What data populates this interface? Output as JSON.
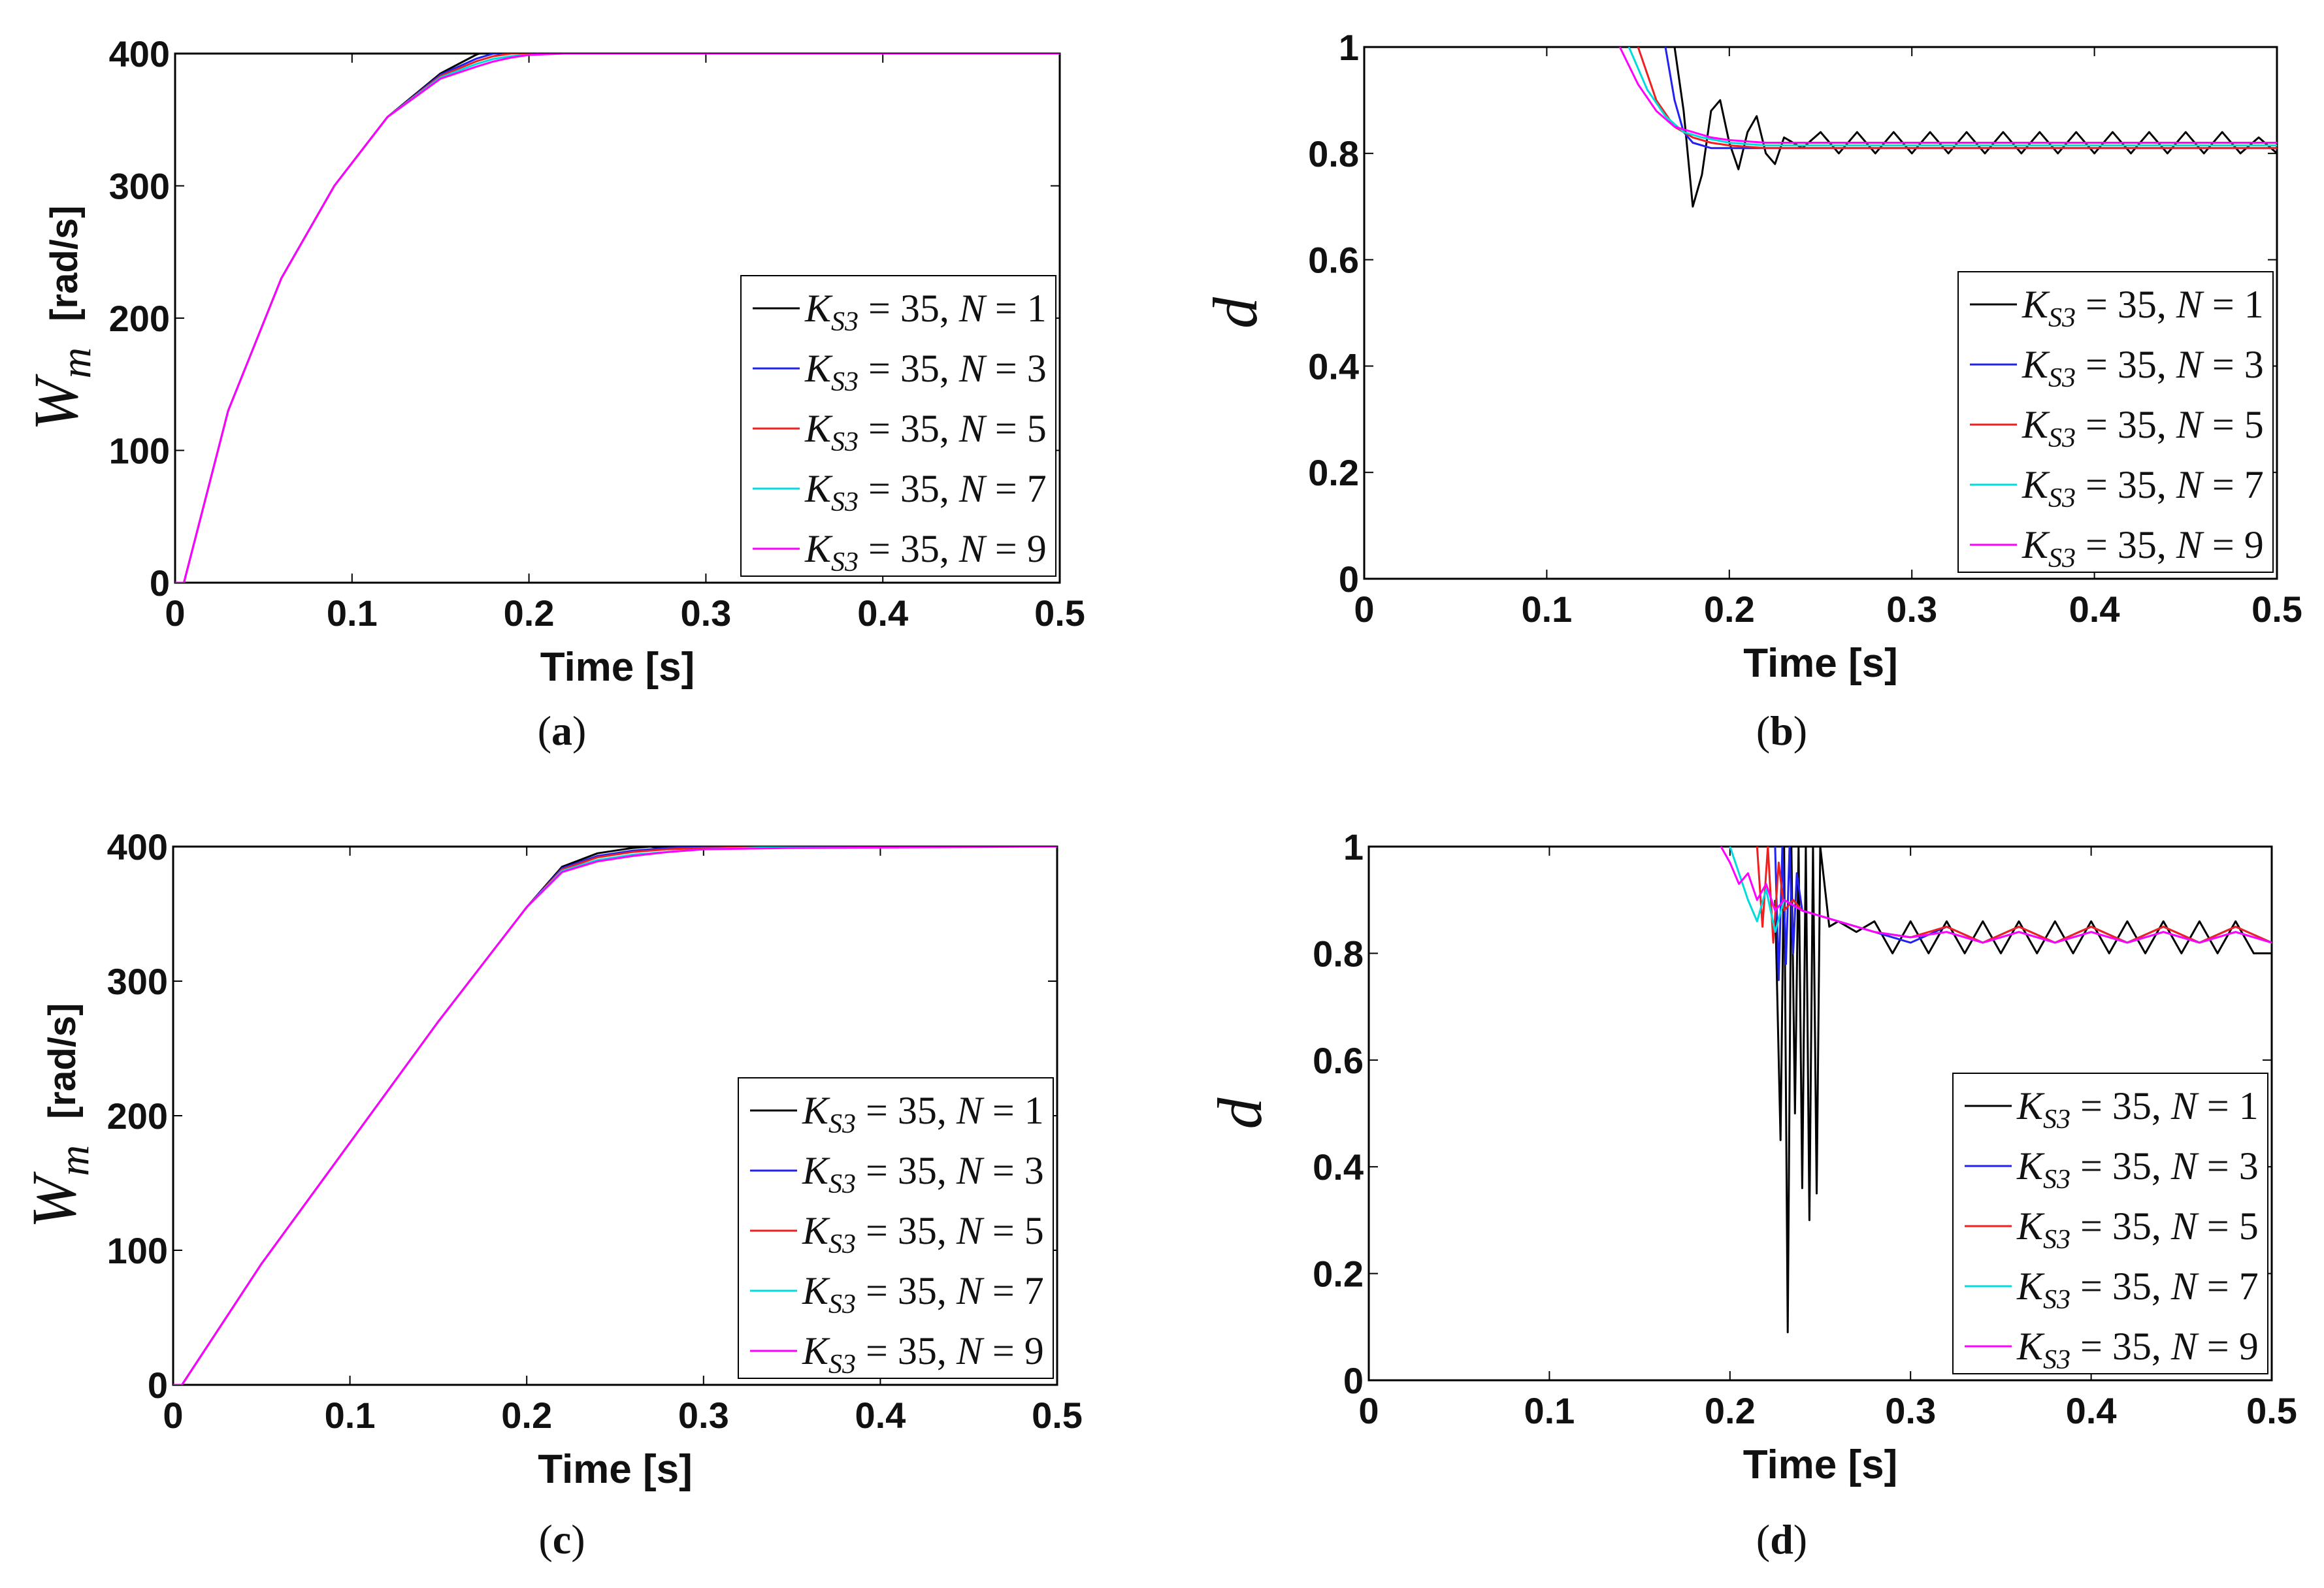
{
  "figure": {
    "captions": [
      "(a)",
      "(b)",
      "(c)",
      "(d)"
    ]
  },
  "series_colors": {
    "N = 1": "#000000",
    "N = 3": "#2222ee",
    "N = 5": "#ee2020",
    "N = 7": "#00dcdc",
    "N = 9": "#ff00ff"
  },
  "chart_data": [
    {
      "panel": "a",
      "type": "line",
      "xlabel": "Time [s]",
      "ylabel_symbol": "W",
      "ylabel_subscript": "m",
      "ylabel_units": "[rad/s]",
      "xlim": [
        0,
        0.5
      ],
      "ylim": [
        0,
        400
      ],
      "xticks": [
        "0",
        "0.1",
        "0.2",
        "0.3",
        "0.4",
        "0.5"
      ],
      "yticks": [
        "0",
        "100",
        "200",
        "300",
        "400"
      ],
      "legend": [
        "K_S3 = 35, N = 1",
        "K_S3 = 35, N = 3",
        "K_S3 = 35, N = 5",
        "K_S3 = 35, N = 7",
        "K_S3 = 35, N = 9"
      ],
      "legend_position": "lower-right",
      "series": [
        {
          "name": "N = 1",
          "color": "#000000",
          "x": [
            0,
            0.005,
            0.03,
            0.06,
            0.09,
            0.12,
            0.15,
            0.17,
            0.18,
            0.19,
            0.2,
            0.21,
            0.22,
            0.25,
            0.3,
            0.5
          ],
          "y": [
            0,
            0,
            130,
            230,
            300,
            352,
            385,
            399,
            404,
            401,
            399,
            400,
            400,
            400,
            400,
            400
          ]
        },
        {
          "name": "N = 3",
          "color": "#2222ee",
          "x": [
            0,
            0.005,
            0.03,
            0.06,
            0.09,
            0.12,
            0.15,
            0.17,
            0.18,
            0.19,
            0.2,
            0.22,
            0.25,
            0.3,
            0.5
          ],
          "y": [
            0,
            0,
            130,
            230,
            300,
            352,
            384,
            396,
            400,
            401,
            400,
            400,
            400,
            400,
            400
          ]
        },
        {
          "name": "N = 5",
          "color": "#ee2020",
          "x": [
            0,
            0.005,
            0.03,
            0.06,
            0.09,
            0.12,
            0.15,
            0.17,
            0.18,
            0.19,
            0.2,
            0.22,
            0.25,
            0.3,
            0.5
          ],
          "y": [
            0,
            0,
            130,
            230,
            300,
            352,
            383,
            394,
            398,
            400,
            400,
            400,
            400,
            400,
            400
          ]
        },
        {
          "name": "N = 7",
          "color": "#00dcdc",
          "x": [
            0,
            0.005,
            0.03,
            0.06,
            0.09,
            0.12,
            0.15,
            0.17,
            0.18,
            0.19,
            0.2,
            0.22,
            0.25,
            0.3,
            0.5
          ],
          "y": [
            0,
            0,
            130,
            230,
            300,
            352,
            382,
            392,
            396,
            398,
            399,
            400,
            400,
            400,
            400
          ]
        },
        {
          "name": "N = 9",
          "color": "#ff00ff",
          "x": [
            0,
            0.005,
            0.03,
            0.06,
            0.09,
            0.12,
            0.15,
            0.17,
            0.18,
            0.19,
            0.2,
            0.22,
            0.25,
            0.3,
            0.5
          ],
          "y": [
            0,
            0,
            130,
            230,
            300,
            352,
            381,
            390,
            394,
            397,
            399,
            400,
            400,
            400,
            400
          ]
        }
      ]
    },
    {
      "panel": "b",
      "type": "line",
      "xlabel": "Time [s]",
      "ylabel_symbol": "d",
      "xlim": [
        0,
        0.5
      ],
      "ylim": [
        0,
        1
      ],
      "xticks": [
        "0",
        "0.1",
        "0.2",
        "0.3",
        "0.4",
        "0.5"
      ],
      "yticks": [
        "0",
        "0.2",
        "0.4",
        "0.6",
        "0.8",
        "1"
      ],
      "legend": [
        "K_S3 = 35, N = 1",
        "K_S3 = 35, N = 3",
        "K_S3 = 35, N = 5",
        "K_S3 = 35, N = 7",
        "K_S3 = 35, N = 9"
      ],
      "legend_position": "lower-right",
      "series": [
        {
          "name": "N = 1",
          "color": "#000000",
          "x": [
            0.17,
            0.175,
            0.18,
            0.185,
            0.19,
            0.195,
            0.2,
            0.205,
            0.21,
            0.215,
            0.22,
            0.225,
            0.23,
            0.24,
            0.25,
            0.26,
            0.27,
            0.28,
            0.29,
            0.3,
            0.31,
            0.32,
            0.33,
            0.34,
            0.35,
            0.36,
            0.37,
            0.38,
            0.39,
            0.4,
            0.41,
            0.42,
            0.43,
            0.44,
            0.45,
            0.46,
            0.47,
            0.48,
            0.49,
            0.5
          ],
          "y": [
            1.0,
            0.88,
            0.7,
            0.76,
            0.88,
            0.9,
            0.82,
            0.77,
            0.84,
            0.87,
            0.8,
            0.78,
            0.83,
            0.81,
            0.84,
            0.8,
            0.84,
            0.8,
            0.84,
            0.8,
            0.84,
            0.8,
            0.84,
            0.8,
            0.84,
            0.8,
            0.84,
            0.8,
            0.84,
            0.8,
            0.84,
            0.8,
            0.84,
            0.8,
            0.84,
            0.8,
            0.84,
            0.8,
            0.83,
            0.8
          ]
        },
        {
          "name": "N = 3",
          "color": "#2222ee",
          "x": [
            0.165,
            0.17,
            0.175,
            0.18,
            0.19,
            0.2,
            0.22,
            0.25,
            0.3,
            0.35,
            0.4,
            0.45,
            0.5
          ],
          "y": [
            1.0,
            0.9,
            0.84,
            0.82,
            0.81,
            0.81,
            0.81,
            0.81,
            0.81,
            0.81,
            0.81,
            0.81,
            0.81
          ]
        },
        {
          "name": "N = 5",
          "color": "#ee2020",
          "x": [
            0.15,
            0.16,
            0.17,
            0.18,
            0.19,
            0.2,
            0.22,
            0.25,
            0.3,
            0.35,
            0.4,
            0.45,
            0.5
          ],
          "y": [
            1.0,
            0.9,
            0.85,
            0.83,
            0.82,
            0.815,
            0.81,
            0.81,
            0.81,
            0.81,
            0.81,
            0.81,
            0.81
          ]
        },
        {
          "name": "N = 7",
          "color": "#00dcdc",
          "x": [
            0.145,
            0.155,
            0.165,
            0.175,
            0.185,
            0.2,
            0.22,
            0.25,
            0.3,
            0.35,
            0.4,
            0.45,
            0.5
          ],
          "y": [
            1.0,
            0.92,
            0.87,
            0.84,
            0.83,
            0.82,
            0.815,
            0.815,
            0.815,
            0.815,
            0.815,
            0.815,
            0.815
          ]
        },
        {
          "name": "N = 9",
          "color": "#ff00ff",
          "x": [
            0.14,
            0.15,
            0.16,
            0.17,
            0.18,
            0.19,
            0.2,
            0.22,
            0.25,
            0.3,
            0.35,
            0.4,
            0.45,
            0.5
          ],
          "y": [
            1.0,
            0.93,
            0.88,
            0.85,
            0.84,
            0.83,
            0.825,
            0.82,
            0.82,
            0.82,
            0.82,
            0.82,
            0.82,
            0.82
          ]
        }
      ]
    },
    {
      "panel": "c",
      "type": "line",
      "xlabel": "Time [s]",
      "ylabel_symbol": "W",
      "ylabel_subscript": "m",
      "ylabel_units": "[rad/s]",
      "xlim": [
        0,
        0.5
      ],
      "ylim": [
        0,
        400
      ],
      "xticks": [
        "0",
        "0.1",
        "0.2",
        "0.3",
        "0.4",
        "0.5"
      ],
      "yticks": [
        "0",
        "100",
        "200",
        "300",
        "400"
      ],
      "legend": [
        "K_S3 = 35, N = 1",
        "K_S3 = 35, N = 3",
        "K_S3 = 35, N = 5",
        "K_S3 = 35, N = 7",
        "K_S3 = 35, N = 9"
      ],
      "legend_position": "lower-right",
      "series": [
        {
          "name": "N = 1",
          "color": "#000000",
          "x": [
            0,
            0.005,
            0.05,
            0.1,
            0.15,
            0.2,
            0.22,
            0.24,
            0.25,
            0.26,
            0.27,
            0.28,
            0.29,
            0.3,
            0.35,
            0.5
          ],
          "y": [
            0,
            0,
            90,
            180,
            270,
            355,
            385,
            395,
            397,
            399,
            400,
            398,
            400,
            400,
            400,
            400
          ]
        },
        {
          "name": "N = 3",
          "color": "#2222ee",
          "x": [
            0,
            0.005,
            0.05,
            0.1,
            0.15,
            0.2,
            0.22,
            0.24,
            0.26,
            0.28,
            0.3,
            0.35,
            0.5
          ],
          "y": [
            0,
            0,
            90,
            180,
            270,
            355,
            384,
            393,
            397,
            399,
            400,
            400,
            400
          ]
        },
        {
          "name": "N = 5",
          "color": "#ee2020",
          "x": [
            0,
            0.005,
            0.05,
            0.1,
            0.15,
            0.2,
            0.22,
            0.24,
            0.26,
            0.28,
            0.3,
            0.35,
            0.5
          ],
          "y": [
            0,
            0,
            90,
            180,
            270,
            355,
            383,
            392,
            396,
            398,
            399,
            400,
            400
          ]
        },
        {
          "name": "N = 7",
          "color": "#00dcdc",
          "x": [
            0,
            0.005,
            0.05,
            0.1,
            0.15,
            0.2,
            0.22,
            0.24,
            0.26,
            0.28,
            0.3,
            0.35,
            0.5
          ],
          "y": [
            0,
            0,
            90,
            180,
            270,
            355,
            382,
            390,
            394,
            396,
            398,
            400,
            400
          ]
        },
        {
          "name": "N = 9",
          "color": "#ff00ff",
          "x": [
            0,
            0.005,
            0.05,
            0.1,
            0.15,
            0.2,
            0.22,
            0.24,
            0.26,
            0.28,
            0.3,
            0.35,
            0.5
          ],
          "y": [
            0,
            0,
            90,
            180,
            270,
            355,
            381,
            389,
            393,
            396,
            398,
            399,
            400
          ]
        }
      ]
    },
    {
      "panel": "d",
      "type": "line",
      "xlabel": "Time [s]",
      "ylabel_symbol": "d",
      "xlim": [
        0,
        0.5
      ],
      "ylim": [
        0,
        1
      ],
      "xticks": [
        "0",
        "0.1",
        "0.2",
        "0.3",
        "0.4",
        "0.5"
      ],
      "yticks": [
        "0",
        "0.2",
        "0.4",
        "0.6",
        "0.8",
        "1"
      ],
      "legend": [
        "K_S3 = 35, N = 1",
        "K_S3 = 35, N = 3",
        "K_S3 = 35, N = 5",
        "K_S3 = 35, N = 7",
        "K_S3 = 35, N = 9"
      ],
      "legend_position": "lower-right",
      "series": [
        {
          "name": "N = 1",
          "color": "#000000",
          "x": [
            0.225,
            0.228,
            0.23,
            0.232,
            0.234,
            0.236,
            0.238,
            0.24,
            0.242,
            0.244,
            0.246,
            0.248,
            0.25,
            0.255,
            0.26,
            0.27,
            0.28,
            0.29,
            0.3,
            0.31,
            0.32,
            0.33,
            0.34,
            0.35,
            0.36,
            0.37,
            0.38,
            0.39,
            0.4,
            0.41,
            0.42,
            0.43,
            0.44,
            0.45,
            0.46,
            0.47,
            0.48,
            0.49,
            0.5
          ],
          "y": [
            0.9,
            0.45,
            1.0,
            0.09,
            1.0,
            0.5,
            1.0,
            0.36,
            1.0,
            0.3,
            1.0,
            0.35,
            1.0,
            0.85,
            0.86,
            0.84,
            0.86,
            0.8,
            0.86,
            0.8,
            0.86,
            0.8,
            0.86,
            0.8,
            0.86,
            0.8,
            0.86,
            0.8,
            0.86,
            0.8,
            0.86,
            0.8,
            0.86,
            0.8,
            0.86,
            0.8,
            0.86,
            0.8,
            0.8
          ]
        },
        {
          "name": "N = 3",
          "color": "#2222ee",
          "x": [
            0.225,
            0.227,
            0.229,
            0.231,
            0.233,
            0.235,
            0.237,
            0.24,
            0.25,
            0.26,
            0.28,
            0.3,
            0.32,
            0.34,
            0.36,
            0.38,
            0.4,
            0.42,
            0.44,
            0.46,
            0.48,
            0.5
          ],
          "y": [
            1.0,
            0.75,
            1.0,
            0.78,
            1.0,
            0.8,
            0.95,
            0.88,
            0.87,
            0.86,
            0.84,
            0.82,
            0.85,
            0.82,
            0.85,
            0.82,
            0.85,
            0.82,
            0.85,
            0.82,
            0.85,
            0.82
          ]
        },
        {
          "name": "N = 5",
          "color": "#ee2020",
          "x": [
            0.215,
            0.218,
            0.221,
            0.224,
            0.227,
            0.23,
            0.235,
            0.24,
            0.25,
            0.26,
            0.28,
            0.3,
            0.32,
            0.34,
            0.36,
            0.38,
            0.4,
            0.42,
            0.44,
            0.46,
            0.48,
            0.5
          ],
          "y": [
            1.0,
            0.85,
            1.0,
            0.82,
            0.97,
            0.88,
            0.9,
            0.88,
            0.87,
            0.86,
            0.84,
            0.83,
            0.85,
            0.82,
            0.85,
            0.82,
            0.85,
            0.82,
            0.85,
            0.82,
            0.85,
            0.82
          ]
        },
        {
          "name": "N = 7",
          "color": "#00dcdc",
          "x": [
            0.2,
            0.205,
            0.21,
            0.215,
            0.22,
            0.225,
            0.23,
            0.24,
            0.25,
            0.26,
            0.28,
            0.3,
            0.32,
            0.34,
            0.36,
            0.38,
            0.4,
            0.42,
            0.44,
            0.46,
            0.48,
            0.5
          ],
          "y": [
            1.0,
            0.95,
            0.9,
            0.86,
            0.92,
            0.84,
            0.9,
            0.88,
            0.87,
            0.86,
            0.84,
            0.83,
            0.84,
            0.82,
            0.84,
            0.82,
            0.84,
            0.82,
            0.84,
            0.82,
            0.84,
            0.82
          ]
        },
        {
          "name": "N = 9",
          "color": "#ff00ff",
          "x": [
            0.195,
            0.2,
            0.205,
            0.21,
            0.215,
            0.22,
            0.225,
            0.23,
            0.24,
            0.25,
            0.26,
            0.28,
            0.3,
            0.32,
            0.34,
            0.36,
            0.38,
            0.4,
            0.42,
            0.44,
            0.46,
            0.48,
            0.5
          ],
          "y": [
            1.0,
            0.97,
            0.93,
            0.95,
            0.9,
            0.93,
            0.88,
            0.9,
            0.88,
            0.87,
            0.86,
            0.84,
            0.83,
            0.84,
            0.82,
            0.84,
            0.82,
            0.84,
            0.82,
            0.84,
            0.82,
            0.84,
            0.82
          ]
        }
      ]
    }
  ]
}
